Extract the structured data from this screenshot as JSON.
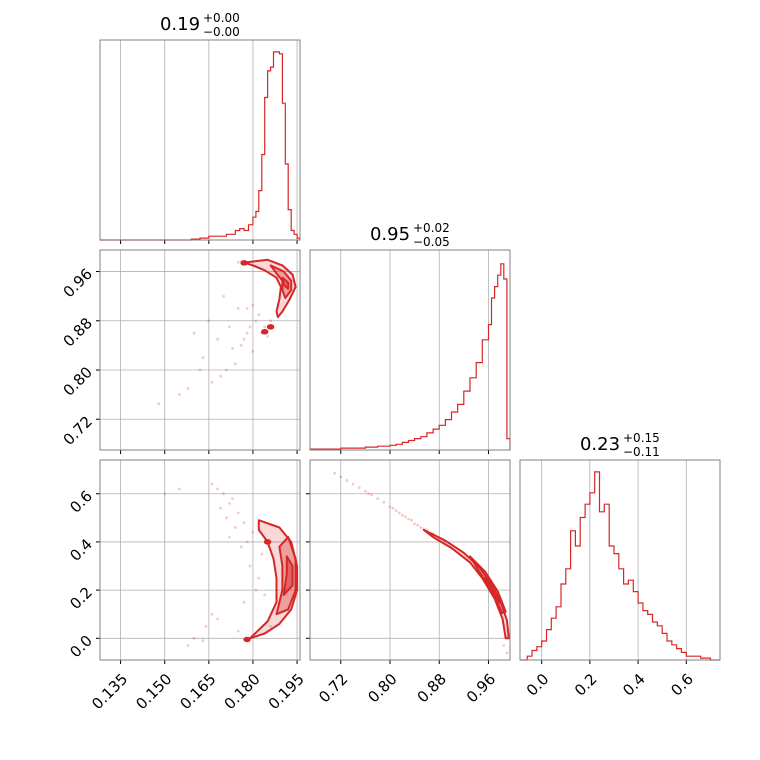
{
  "chart_data": [
    {
      "type": "histogram",
      "panel": "param1-marginal",
      "title": {
        "value": "0.19",
        "upper": "+0.00",
        "lower": "−0.00"
      },
      "xlim": [
        0.128,
        0.196
      ],
      "bins_x": [
        0.15,
        0.153,
        0.156,
        0.159,
        0.162,
        0.165,
        0.168,
        0.171,
        0.174,
        0.1755,
        0.177,
        0.1785,
        0.18,
        0.181,
        0.182,
        0.183,
        0.184,
        0.185,
        0.186,
        0.187,
        0.188,
        0.189,
        0.19,
        0.191,
        0.192,
        0.193,
        0.194,
        0.195,
        0.196
      ],
      "bins_h": [
        0.0,
        0.0,
        0.0,
        0.005,
        0.01,
        0.02,
        0.02,
        0.03,
        0.05,
        0.06,
        0.05,
        0.08,
        0.12,
        0.15,
        0.26,
        0.45,
        0.75,
        0.89,
        0.91,
        0.99,
        0.99,
        0.98,
        0.72,
        0.4,
        0.16,
        0.05,
        0.03,
        0.01
      ]
    },
    {
      "type": "histogram",
      "panel": "param2-marginal",
      "title": {
        "value": "0.95",
        "upper": "+0.02",
        "lower": "−0.05"
      },
      "xlim": [
        0.67,
        0.995
      ],
      "xticks": [
        "0.72",
        "0.80",
        "0.88",
        "0.96"
      ],
      "bins_x": [
        0.67,
        0.72,
        0.74,
        0.76,
        0.78,
        0.8,
        0.81,
        0.82,
        0.83,
        0.84,
        0.85,
        0.86,
        0.87,
        0.88,
        0.89,
        0.9,
        0.91,
        0.92,
        0.93,
        0.94,
        0.95,
        0.96,
        0.965,
        0.97,
        0.975,
        0.98,
        0.985,
        0.99,
        0.995
      ],
      "bins_h": [
        0.005,
        0.01,
        0.01,
        0.015,
        0.02,
        0.025,
        0.03,
        0.04,
        0.05,
        0.06,
        0.07,
        0.09,
        0.11,
        0.13,
        0.16,
        0.2,
        0.24,
        0.31,
        0.38,
        0.46,
        0.58,
        0.66,
        0.8,
        0.86,
        0.92,
        0.98,
        0.9,
        0.06
      ]
    },
    {
      "type": "histogram",
      "panel": "param3-marginal",
      "title": {
        "value": "0.23",
        "upper": "+0.15",
        "lower": "−0.11"
      },
      "xlim": [
        -0.09,
        0.74
      ],
      "xticks": [
        "0.0",
        "0.2",
        "0.4",
        "0.6"
      ],
      "bins_x": [
        -0.08,
        -0.06,
        -0.04,
        -0.02,
        0.0,
        0.02,
        0.04,
        0.06,
        0.08,
        0.1,
        0.12,
        0.14,
        0.16,
        0.18,
        0.2,
        0.22,
        0.24,
        0.26,
        0.28,
        0.3,
        0.32,
        0.34,
        0.36,
        0.38,
        0.4,
        0.42,
        0.44,
        0.46,
        0.48,
        0.5,
        0.52,
        0.54,
        0.56,
        0.58,
        0.6,
        0.62,
        0.64,
        0.66,
        0.68,
        0.7,
        0.72,
        0.74
      ],
      "bins_h": [
        0.0,
        0.02,
        0.05,
        0.07,
        0.1,
        0.16,
        0.22,
        0.28,
        0.4,
        0.48,
        0.68,
        0.6,
        0.75,
        0.82,
        0.88,
        0.99,
        0.78,
        0.82,
        0.6,
        0.56,
        0.48,
        0.4,
        0.42,
        0.36,
        0.3,
        0.26,
        0.24,
        0.2,
        0.18,
        0.14,
        0.1,
        0.08,
        0.06,
        0.04,
        0.02,
        0.02,
        0.02,
        0.01,
        0.01,
        0.0,
        0.0
      ]
    },
    {
      "type": "scatter+contour",
      "panel": "param1-vs-param2",
      "xlim": [
        0.128,
        0.196
      ],
      "ylim": [
        0.67,
        0.995
      ],
      "yticks": [
        "0.72",
        "0.80",
        "0.88",
        "0.96"
      ],
      "contours": [
        {
          "level": "outer",
          "points": [
            [
              0.177,
              0.9745
            ],
            [
              0.185,
              0.979
            ],
            [
              0.19,
              0.97
            ],
            [
              0.1935,
              0.955
            ],
            [
              0.1945,
              0.935
            ],
            [
              0.1925,
              0.915
            ],
            [
              0.19,
              0.895
            ],
            [
              0.1885,
              0.886
            ],
            [
              0.188,
              0.895
            ],
            [
              0.189,
              0.915
            ],
            [
              0.1895,
              0.935
            ],
            [
              0.188,
              0.95
            ],
            [
              0.184,
              0.962
            ],
            [
              0.18,
              0.97
            ],
            [
              0.177,
              0.9745
            ]
          ]
        },
        {
          "level": "mid",
          "points": [
            [
              0.186,
              0.97
            ],
            [
              0.1905,
              0.96
            ],
            [
              0.193,
              0.945
            ],
            [
              0.193,
              0.93
            ],
            [
              0.191,
              0.917
            ],
            [
              0.19,
              0.93
            ],
            [
              0.19,
              0.945
            ],
            [
              0.188,
              0.957
            ],
            [
              0.186,
              0.97
            ]
          ]
        },
        {
          "level": "inner",
          "points": [
            [
              0.19,
              0.95
            ],
            [
              0.192,
              0.942
            ],
            [
              0.192,
              0.932
            ],
            [
              0.1905,
              0.938
            ],
            [
              0.19,
              0.95
            ]
          ]
        }
      ],
      "blobs": [
        [
          0.177,
          0.974
        ],
        [
          0.184,
          0.862
        ],
        [
          0.186,
          0.87
        ]
      ],
      "scatter_x": [
        0.17,
        0.165,
        0.16,
        0.175,
        0.168,
        0.172,
        0.178,
        0.163,
        0.155,
        0.181,
        0.183,
        0.176,
        0.171,
        0.166,
        0.18,
        0.174,
        0.169,
        0.179,
        0.182,
        0.177,
        0.148,
        0.185,
        0.173,
        0.178,
        0.184,
        0.186,
        0.18,
        0.162,
        0.158,
        0.175
      ],
      "scatter_y": [
        0.92,
        0.88,
        0.86,
        0.9,
        0.85,
        0.87,
        0.9,
        0.82,
        0.76,
        0.88,
        0.86,
        0.84,
        0.8,
        0.78,
        0.83,
        0.81,
        0.79,
        0.87,
        0.89,
        0.85,
        0.745,
        0.855,
        0.835,
        0.86,
        0.87,
        0.88,
        0.905,
        0.8,
        0.77,
        0.975
      ]
    },
    {
      "type": "scatter+contour",
      "panel": "param1-vs-param3",
      "xlim": [
        0.128,
        0.196
      ],
      "ylim": [
        -0.09,
        0.74
      ],
      "xticks": [
        "0.135",
        "0.150",
        "0.165",
        "0.180",
        "0.195"
      ],
      "yticks": [
        "0.0",
        "0.2",
        "0.4",
        "0.6"
      ],
      "contours": [
        {
          "level": "outer",
          "points": [
            [
              0.179,
              0.0
            ],
            [
              0.185,
              0.07
            ],
            [
              0.188,
              0.15
            ],
            [
              0.188,
              0.25
            ],
            [
              0.187,
              0.33
            ],
            [
              0.185,
              0.4
            ],
            [
              0.182,
              0.45
            ],
            [
              0.182,
              0.49
            ],
            [
              0.189,
              0.46
            ],
            [
              0.193,
              0.4
            ],
            [
              0.195,
              0.3
            ],
            [
              0.195,
              0.2
            ],
            [
              0.193,
              0.12
            ],
            [
              0.189,
              0.06
            ],
            [
              0.184,
              0.02
            ],
            [
              0.179,
              0.0
            ]
          ]
        },
        {
          "level": "mid",
          "points": [
            [
              0.188,
              0.1
            ],
            [
              0.19,
              0.2
            ],
            [
              0.19,
              0.3
            ],
            [
              0.189,
              0.38
            ],
            [
              0.192,
              0.42
            ],
            [
              0.1945,
              0.33
            ],
            [
              0.1945,
              0.2
            ],
            [
              0.192,
              0.12
            ],
            [
              0.188,
              0.1
            ]
          ]
        },
        {
          "level": "inner",
          "points": [
            [
              0.1905,
              0.18
            ],
            [
              0.1915,
              0.27
            ],
            [
              0.1915,
              0.34
            ],
            [
              0.1935,
              0.3
            ],
            [
              0.1935,
              0.22
            ],
            [
              0.1905,
              0.18
            ]
          ]
        }
      ],
      "blobs": [
        [
          0.178,
          -0.005
        ],
        [
          0.185,
          0.4
        ]
      ],
      "scatter_x": [
        0.168,
        0.17,
        0.172,
        0.166,
        0.175,
        0.173,
        0.169,
        0.177,
        0.174,
        0.171,
        0.18,
        0.178,
        0.176,
        0.164,
        0.16,
        0.158,
        0.175,
        0.179,
        0.182,
        0.183,
        0.168,
        0.15,
        0.172,
        0.166,
        0.181,
        0.177,
        0.184,
        0.186,
        0.155,
        0.163
      ],
      "scatter_y": [
        0.62,
        0.6,
        0.56,
        0.64,
        0.52,
        0.58,
        0.54,
        0.48,
        0.46,
        0.5,
        0.44,
        0.4,
        0.38,
        0.05,
        0.0,
        -0.03,
        0.03,
        0.3,
        0.25,
        0.35,
        0.08,
        0.6,
        0.42,
        0.1,
        0.2,
        0.15,
        0.18,
        0.05,
        0.62,
        -0.01
      ]
    },
    {
      "type": "scatter+contour",
      "panel": "param2-vs-param3",
      "xlim": [
        0.67,
        0.995
      ],
      "ylim": [
        -0.09,
        0.74
      ],
      "xticks": [
        "0.72",
        "0.80",
        "0.88",
        "0.96"
      ],
      "contours": [
        {
          "level": "outer",
          "points": [
            [
              0.855,
              0.45
            ],
            [
              0.89,
              0.405
            ],
            [
              0.92,
              0.355
            ],
            [
              0.945,
              0.295
            ],
            [
              0.965,
              0.225
            ],
            [
              0.98,
              0.15
            ],
            [
              0.99,
              0.075
            ],
            [
              0.993,
              0.0
            ],
            [
              0.988,
              0.0
            ],
            [
              0.983,
              0.08
            ],
            [
              0.97,
              0.165
            ],
            [
              0.95,
              0.25
            ],
            [
              0.93,
              0.315
            ],
            [
              0.9,
              0.375
            ],
            [
              0.87,
              0.42
            ],
            [
              0.855,
              0.45
            ]
          ]
        },
        {
          "level": "mid",
          "points": [
            [
              0.93,
              0.34
            ],
            [
              0.955,
              0.275
            ],
            [
              0.975,
              0.195
            ],
            [
              0.988,
              0.11
            ],
            [
              0.982,
              0.105
            ],
            [
              0.968,
              0.19
            ],
            [
              0.948,
              0.265
            ],
            [
              0.93,
              0.34
            ]
          ]
        },
        {
          "level": "inner",
          "points": [
            [
              0.955,
              0.25
            ],
            [
              0.97,
              0.2
            ],
            [
              0.98,
              0.145
            ],
            [
              0.972,
              0.17
            ],
            [
              0.96,
              0.22
            ],
            [
              0.955,
              0.25
            ]
          ]
        }
      ],
      "blobs": [],
      "scatter_x": [
        0.72,
        0.74,
        0.76,
        0.78,
        0.8,
        0.81,
        0.82,
        0.83,
        0.84,
        0.85,
        0.73,
        0.75,
        0.77,
        0.79,
        0.815,
        0.825,
        0.835,
        0.845,
        0.86,
        0.87,
        0.71,
        0.765,
        0.805,
        0.855,
        0.99,
        0.985
      ],
      "scatter_y": [
        0.67,
        0.64,
        0.61,
        0.58,
        0.545,
        0.53,
        0.51,
        0.495,
        0.475,
        0.46,
        0.655,
        0.625,
        0.595,
        0.565,
        0.52,
        0.505,
        0.49,
        0.47,
        0.45,
        0.435,
        0.685,
        0.6,
        0.54,
        0.455,
        -0.06,
        -0.03
      ]
    }
  ]
}
